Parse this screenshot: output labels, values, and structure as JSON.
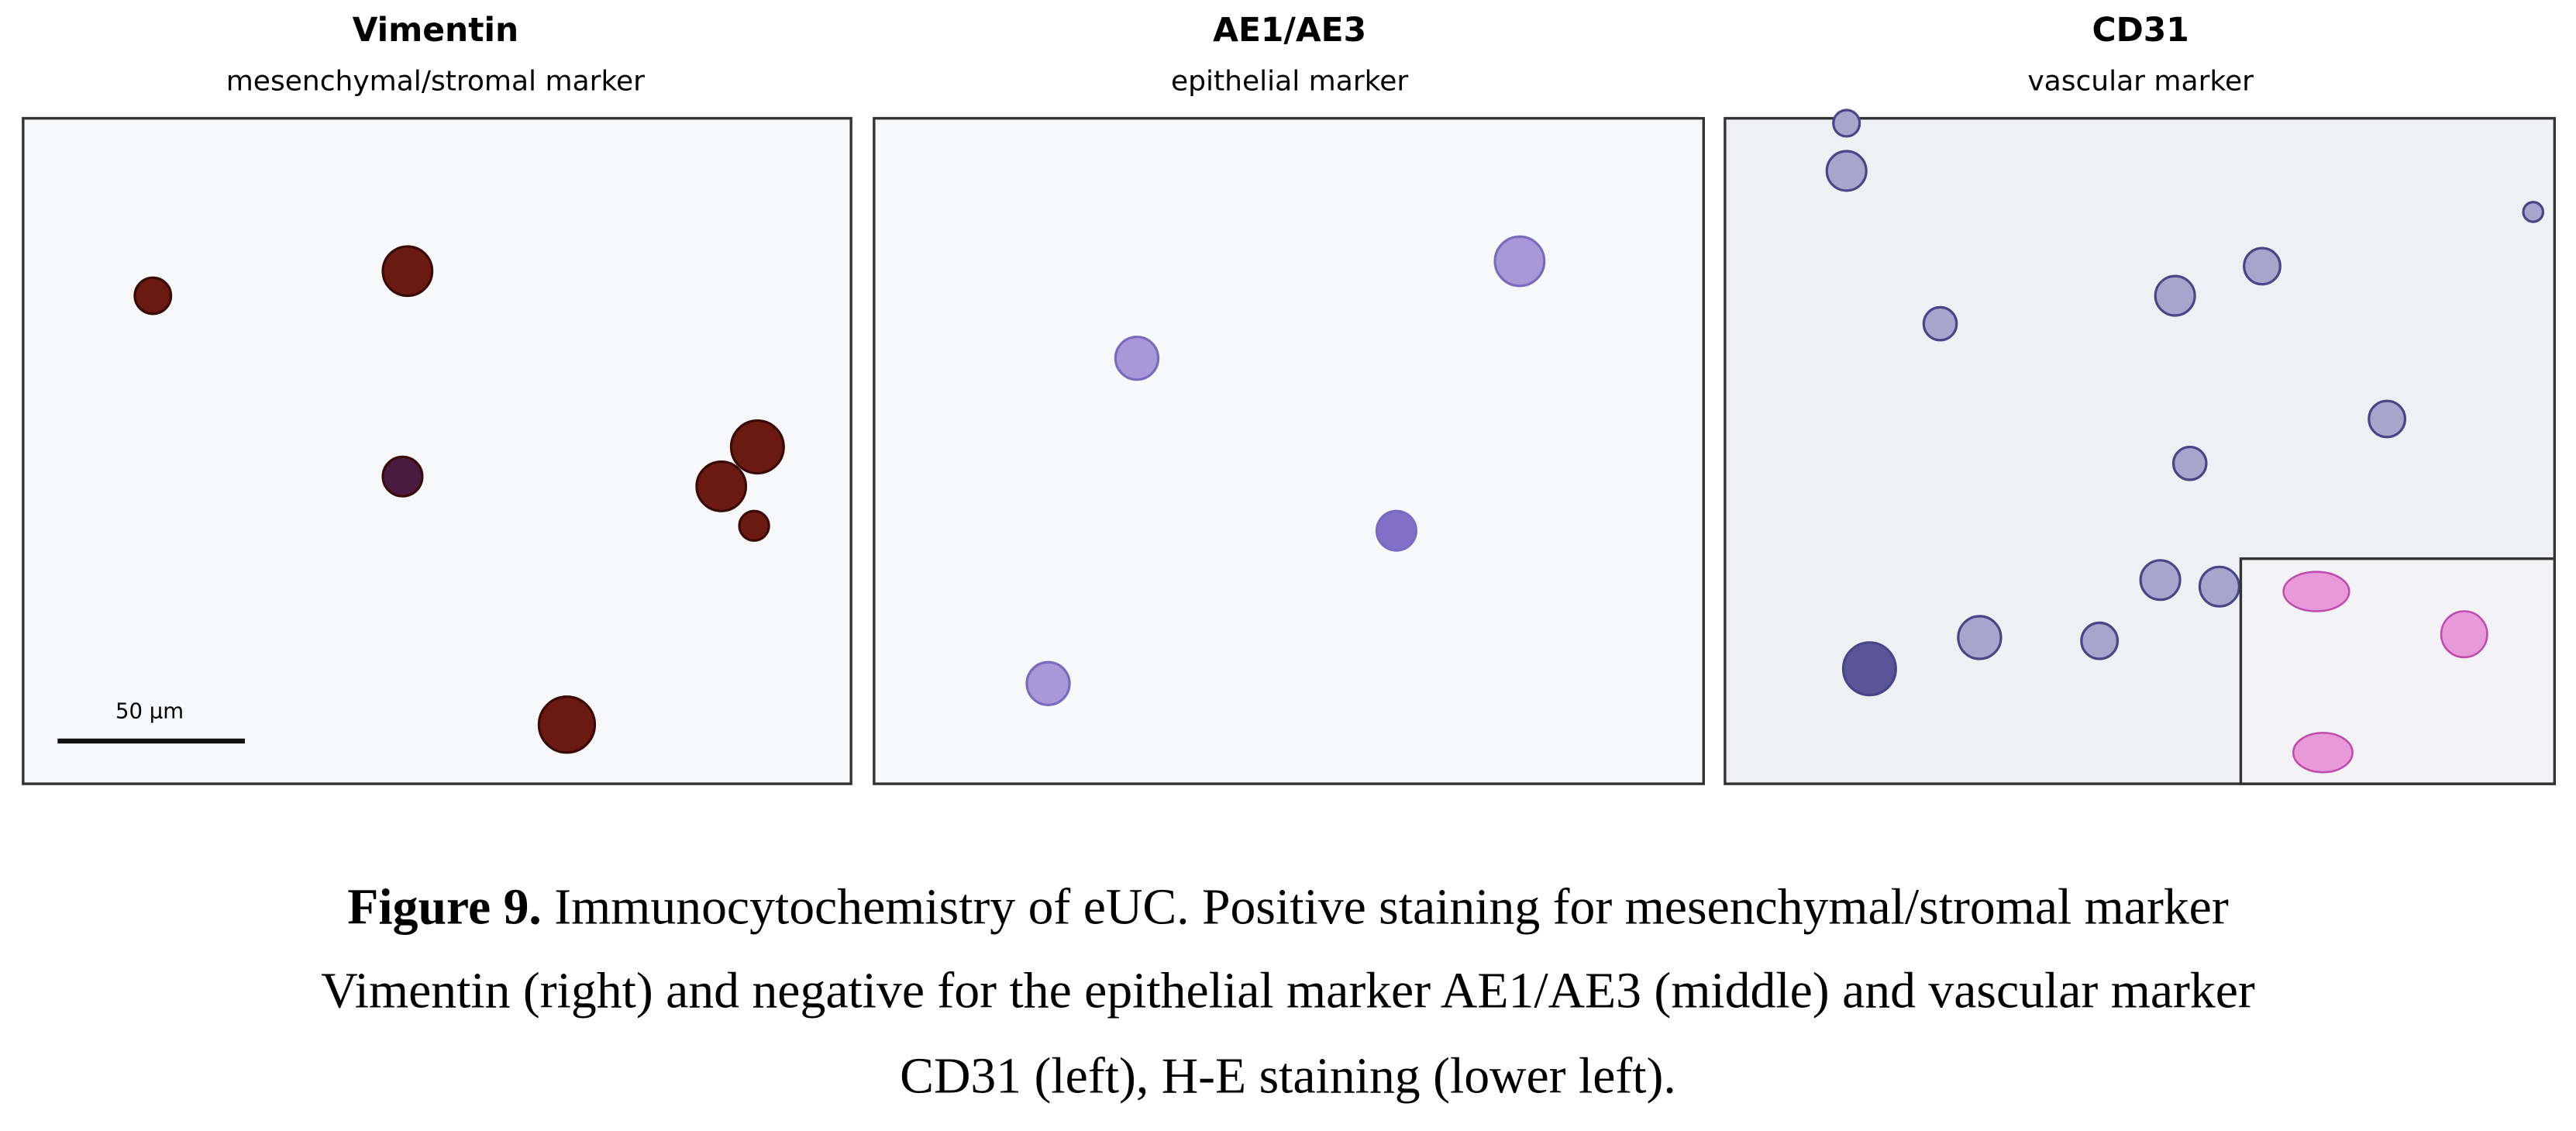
{
  "panels": [
    {
      "title": "Vimentin",
      "subtitle": "mesenchymal/stromal marker",
      "scale_bar": "50 µm"
    },
    {
      "title": "AE1/AE3",
      "subtitle": "epithelial marker"
    },
    {
      "title": "CD31",
      "subtitle": "vascular marker"
    }
  ],
  "caption": {
    "label": "Figure 9.",
    "lines": [
      " Immunocytochemistry of eUC. Positive staining for mesenchymal/stromal marker",
      "Vimentin (right) and negative for the epithelial marker AE1/AE3 (middle) and vascular marker",
      "CD31 (left), H-E staining (lower left)."
    ]
  }
}
